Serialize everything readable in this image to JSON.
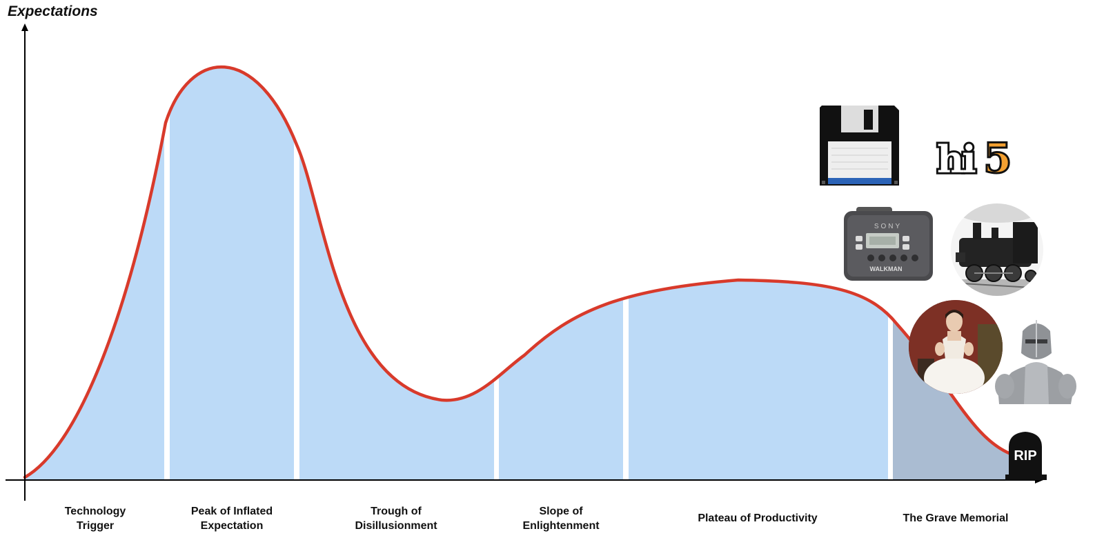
{
  "diagram": {
    "y_axis_title": "Expectations",
    "curve_color": "#d83a2b",
    "fill_color": "#bcdaf7",
    "grave_fill_color": "#aabcd2",
    "phases": [
      {
        "line1": "Technology",
        "line2": "Trigger"
      },
      {
        "line1": "Peak of Inflated",
        "line2": "Expectation"
      },
      {
        "line1": "Trough of",
        "line2": "Disillusionment"
      },
      {
        "line1": "Slope of",
        "line2": "Enlightenment"
      },
      {
        "line1": "Plateau of Productivity",
        "line2": ""
      },
      {
        "line1": "The Grave Memorial",
        "line2": ""
      }
    ],
    "tombstone_text": "RIP",
    "logo_text": {
      "letters": "hi",
      "digit": "5"
    },
    "cassette": {
      "brand": "SONY",
      "model": "WALKMAN"
    },
    "icons": [
      "floppy-disk-icon",
      "hi5-logo-icon",
      "walkman-cassette-icon",
      "steam-locomotive-icon",
      "victorian-portrait-icon",
      "knight-armor-icon",
      "tombstone-icon"
    ]
  }
}
